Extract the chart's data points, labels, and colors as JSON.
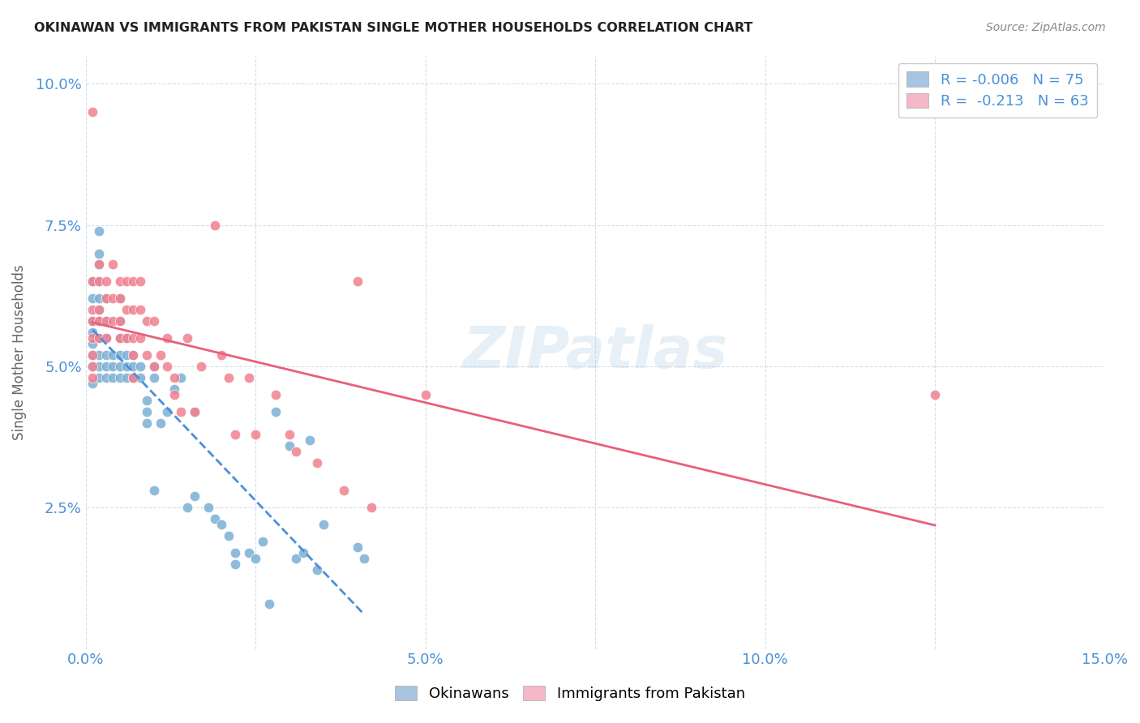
{
  "title": "OKINAWAN VS IMMIGRANTS FROM PAKISTAN SINGLE MOTHER HOUSEHOLDS CORRELATION CHART",
  "source": "Source: ZipAtlas.com",
  "xlabel_label": "",
  "ylabel_label": "Single Mother Households",
  "xlim": [
    0.0,
    0.15
  ],
  "ylim": [
    0.0,
    0.105
  ],
  "xticks": [
    0.0,
    0.025,
    0.05,
    0.075,
    0.1,
    0.125,
    0.15
  ],
  "yticks": [
    0.0,
    0.025,
    0.05,
    0.075,
    0.1
  ],
  "xtick_labels": [
    "0.0%",
    "",
    "5.0%",
    "",
    "10.0%",
    "",
    "15.0%"
  ],
  "ytick_labels": [
    "",
    "2.5%",
    "5.0%",
    "7.5%",
    "10.0%"
  ],
  "legend_entries": [
    {
      "label": "R = -0.006   N = 75",
      "color": "#a8c4e0"
    },
    {
      "label": "R =  -0.213   N = 63",
      "color": "#f4b8c8"
    }
  ],
  "bottom_legend": [
    "Okinawans",
    "Immigrants from Pakistan"
  ],
  "bottom_legend_colors": [
    "#a8c4e0",
    "#f4b8c8"
  ],
  "okinawan_R": -0.006,
  "pakistan_R": -0.213,
  "okinawan_N": 75,
  "pakistan_N": 63,
  "scatter_color_okinawan": "#7bafd4",
  "scatter_color_pakistan": "#f08090",
  "line_color_okinawan": "#4a90d9",
  "line_color_pakistan": "#e8607a",
  "watermark": "ZIPatlas",
  "background_color": "#ffffff",
  "grid_color": "#c8d8e8",
  "title_color": "#222222",
  "axis_label_color": "#4a90d9",
  "okinawan_x": [
    0.001,
    0.001,
    0.001,
    0.001,
    0.001,
    0.001,
    0.001,
    0.001,
    0.002,
    0.002,
    0.002,
    0.002,
    0.002,
    0.002,
    0.002,
    0.002,
    0.002,
    0.002,
    0.002,
    0.003,
    0.003,
    0.003,
    0.003,
    0.003,
    0.003,
    0.004,
    0.004,
    0.004,
    0.005,
    0.005,
    0.005,
    0.005,
    0.005,
    0.005,
    0.006,
    0.006,
    0.006,
    0.006,
    0.007,
    0.007,
    0.007,
    0.008,
    0.008,
    0.009,
    0.009,
    0.009,
    0.01,
    0.01,
    0.01,
    0.011,
    0.012,
    0.013,
    0.014,
    0.015,
    0.016,
    0.016,
    0.018,
    0.019,
    0.02,
    0.021,
    0.022,
    0.022,
    0.024,
    0.025,
    0.026,
    0.027,
    0.028,
    0.03,
    0.031,
    0.032,
    0.033,
    0.034,
    0.035,
    0.04,
    0.041
  ],
  "okinawan_y": [
    0.047,
    0.05,
    0.052,
    0.054,
    0.056,
    0.058,
    0.062,
    0.065,
    0.048,
    0.05,
    0.052,
    0.055,
    0.058,
    0.06,
    0.062,
    0.065,
    0.068,
    0.07,
    0.074,
    0.048,
    0.05,
    0.052,
    0.055,
    0.058,
    0.062,
    0.048,
    0.05,
    0.052,
    0.048,
    0.05,
    0.052,
    0.055,
    0.058,
    0.062,
    0.048,
    0.05,
    0.052,
    0.055,
    0.048,
    0.05,
    0.052,
    0.048,
    0.05,
    0.04,
    0.042,
    0.044,
    0.048,
    0.05,
    0.028,
    0.04,
    0.042,
    0.046,
    0.048,
    0.025,
    0.027,
    0.042,
    0.025,
    0.023,
    0.022,
    0.02,
    0.015,
    0.017,
    0.017,
    0.016,
    0.019,
    0.008,
    0.042,
    0.036,
    0.016,
    0.017,
    0.037,
    0.014,
    0.022,
    0.018,
    0.016
  ],
  "pakistan_x": [
    0.001,
    0.001,
    0.001,
    0.001,
    0.001,
    0.001,
    0.001,
    0.001,
    0.002,
    0.002,
    0.002,
    0.002,
    0.002,
    0.003,
    0.003,
    0.003,
    0.003,
    0.004,
    0.004,
    0.004,
    0.005,
    0.005,
    0.005,
    0.005,
    0.006,
    0.006,
    0.006,
    0.007,
    0.007,
    0.007,
    0.007,
    0.007,
    0.008,
    0.008,
    0.008,
    0.009,
    0.009,
    0.01,
    0.01,
    0.011,
    0.012,
    0.012,
    0.013,
    0.013,
    0.014,
    0.015,
    0.016,
    0.017,
    0.019,
    0.02,
    0.021,
    0.022,
    0.024,
    0.025,
    0.028,
    0.03,
    0.031,
    0.034,
    0.038,
    0.04,
    0.042,
    0.05,
    0.125
  ],
  "pakistan_y": [
    0.095,
    0.065,
    0.06,
    0.058,
    0.055,
    0.052,
    0.05,
    0.048,
    0.068,
    0.065,
    0.06,
    0.058,
    0.055,
    0.065,
    0.062,
    0.058,
    0.055,
    0.068,
    0.062,
    0.058,
    0.065,
    0.062,
    0.058,
    0.055,
    0.065,
    0.06,
    0.055,
    0.065,
    0.06,
    0.055,
    0.052,
    0.048,
    0.065,
    0.06,
    0.055,
    0.058,
    0.052,
    0.058,
    0.05,
    0.052,
    0.055,
    0.05,
    0.048,
    0.045,
    0.042,
    0.055,
    0.042,
    0.05,
    0.075,
    0.052,
    0.048,
    0.038,
    0.048,
    0.038,
    0.045,
    0.038,
    0.035,
    0.033,
    0.028,
    0.065,
    0.025,
    0.045,
    0.045
  ]
}
